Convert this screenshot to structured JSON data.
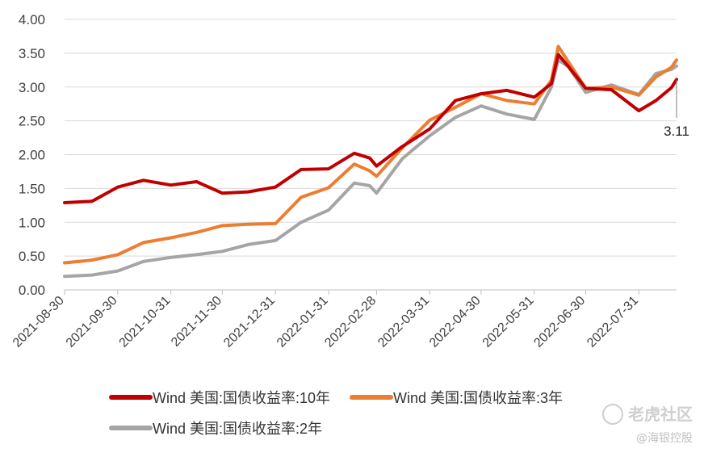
{
  "chart_data": {
    "type": "line",
    "title": "",
    "xlabel": "",
    "ylabel": "",
    "ylim": [
      0,
      4
    ],
    "yticks": [
      "0.00",
      "0.50",
      "1.00",
      "1.50",
      "2.00",
      "2.50",
      "3.00",
      "3.50",
      "4.00"
    ],
    "xticks": [
      "2021-08-30",
      "2021-09-30",
      "2021-10-31",
      "2021-11-30",
      "2021-12-31",
      "2022-01-31",
      "2022-02-28",
      "2022-03-31",
      "2022-04-30",
      "2022-05-31",
      "2022-06-30",
      "2022-07-31"
    ],
    "x": [
      "2021-08-30",
      "2021-09-15",
      "2021-09-30",
      "2021-10-15",
      "2021-10-31",
      "2021-11-15",
      "2021-11-30",
      "2021-12-15",
      "2021-12-31",
      "2022-01-15",
      "2022-01-31",
      "2022-02-15",
      "2022-02-24",
      "2022-02-28",
      "2022-03-15",
      "2022-03-31",
      "2022-04-15",
      "2022-04-30",
      "2022-05-15",
      "2022-05-31",
      "2022-06-10",
      "2022-06-14",
      "2022-06-20",
      "2022-06-30",
      "2022-07-15",
      "2022-07-31",
      "2022-08-10",
      "2022-08-19",
      "2022-08-22"
    ],
    "series": [
      {
        "name": "Wind 美国:国债收益率:10年",
        "color": "#c00000",
        "values": [
          1.29,
          1.31,
          1.52,
          1.62,
          1.55,
          1.6,
          1.43,
          1.45,
          1.52,
          1.78,
          1.79,
          2.02,
          1.95,
          1.83,
          2.12,
          2.38,
          2.8,
          2.9,
          2.95,
          2.85,
          3.05,
          3.48,
          3.3,
          2.98,
          2.96,
          2.65,
          2.8,
          2.99,
          3.11
        ]
      },
      {
        "name": "Wind 美国:国债收益率:3年",
        "color": "#ed7d31",
        "values": [
          0.4,
          0.44,
          0.52,
          0.7,
          0.77,
          0.85,
          0.95,
          0.97,
          0.98,
          1.37,
          1.51,
          1.86,
          1.76,
          1.68,
          2.1,
          2.51,
          2.7,
          2.9,
          2.8,
          2.75,
          3.1,
          3.6,
          3.37,
          2.98,
          3.0,
          2.88,
          3.15,
          3.29,
          3.4
        ]
      },
      {
        "name": "Wind 美国:国债收益率:2年",
        "color": "#a5a5a5",
        "values": [
          0.2,
          0.22,
          0.28,
          0.42,
          0.48,
          0.52,
          0.57,
          0.67,
          0.73,
          1.0,
          1.18,
          1.58,
          1.54,
          1.43,
          1.94,
          2.28,
          2.55,
          2.72,
          2.6,
          2.52,
          3.0,
          3.4,
          3.3,
          2.92,
          3.03,
          2.89,
          3.2,
          3.26,
          3.31
        ]
      }
    ],
    "annotation": {
      "text": "3.11",
      "series": 0
    },
    "grid": true,
    "legend": "bottom"
  },
  "watermark": {
    "brand": "老虎社区",
    "sub": "@海银控股"
  }
}
